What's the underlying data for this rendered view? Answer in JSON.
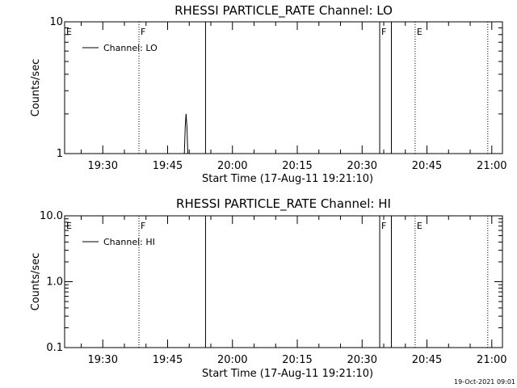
{
  "footer_timestamp": "19-Oct-2021 09:01",
  "chart_data": [
    {
      "type": "line",
      "title": "RHESSI PARTICLE_RATE Channel: LO",
      "xlabel": "Start Time (17-Aug-11 19:21:10)",
      "ylabel": "Counts/sec",
      "y_scale": "log",
      "ylim": [
        1,
        10
      ],
      "y_ticks": [
        {
          "value": 1,
          "label": "1"
        },
        {
          "value": 10,
          "label": "10"
        }
      ],
      "x_unit": "minutes after 19:21:10",
      "xlim": [
        0,
        101.3
      ],
      "x_ticks": [
        {
          "value": 8.83,
          "label": "19:30"
        },
        {
          "value": 23.83,
          "label": "19:45"
        },
        {
          "value": 38.83,
          "label": "20:00"
        },
        {
          "value": 53.83,
          "label": "20:15"
        },
        {
          "value": 68.83,
          "label": "20:30"
        },
        {
          "value": 83.83,
          "label": "20:45"
        },
        {
          "value": 98.83,
          "label": "21:00"
        }
      ],
      "legend": {
        "label": "Channel: LO",
        "placement": "top-left"
      },
      "series": [
        {
          "name": "Channel: LO",
          "x": [
            27.7,
            27.9,
            28.1,
            28.3,
            28.5
          ],
          "y": [
            1,
            1.6,
            2,
            1.6,
            1
          ]
        }
      ],
      "markers": [
        {
          "x": 0,
          "label": "E",
          "style": "dotted"
        },
        {
          "x": 17.2,
          "label": "F",
          "style": "dotted"
        },
        {
          "x": 32.6,
          "label": "",
          "style": "solid"
        },
        {
          "x": 72.9,
          "label": "F",
          "style": "solid"
        },
        {
          "x": 75.6,
          "label": "",
          "style": "solid"
        },
        {
          "x": 81.1,
          "label": "E",
          "style": "dotted"
        },
        {
          "x": 97.9,
          "label": "",
          "style": "dotted"
        }
      ]
    },
    {
      "type": "line",
      "title": "RHESSI PARTICLE_RATE Channel: HI",
      "xlabel": "Start Time (17-Aug-11 19:21:10)",
      "ylabel": "Counts/sec",
      "y_scale": "log",
      "ylim": [
        0.1,
        10
      ],
      "y_ticks": [
        {
          "value": 0.1,
          "label": "0.1"
        },
        {
          "value": 1,
          "label": "1.0"
        },
        {
          "value": 10,
          "label": "10.0"
        }
      ],
      "x_unit": "minutes after 19:21:10",
      "xlim": [
        0,
        101.3
      ],
      "x_ticks": [
        {
          "value": 8.83,
          "label": "19:30"
        },
        {
          "value": 23.83,
          "label": "19:45"
        },
        {
          "value": 38.83,
          "label": "20:00"
        },
        {
          "value": 53.83,
          "label": "20:15"
        },
        {
          "value": 68.83,
          "label": "20:30"
        },
        {
          "value": 83.83,
          "label": "20:45"
        },
        {
          "value": 98.83,
          "label": "21:00"
        }
      ],
      "legend": {
        "label": "Channel: HI",
        "placement": "top-left"
      },
      "series": [
        {
          "name": "Channel: HI",
          "x": [],
          "y": []
        }
      ],
      "markers": [
        {
          "x": 0,
          "label": "E",
          "style": "dotted"
        },
        {
          "x": 17.2,
          "label": "F",
          "style": "dotted"
        },
        {
          "x": 32.6,
          "label": "",
          "style": "solid"
        },
        {
          "x": 72.9,
          "label": "F",
          "style": "solid"
        },
        {
          "x": 75.6,
          "label": "",
          "style": "solid"
        },
        {
          "x": 81.1,
          "label": "E",
          "style": "dotted"
        },
        {
          "x": 97.9,
          "label": "",
          "style": "dotted"
        }
      ]
    }
  ]
}
